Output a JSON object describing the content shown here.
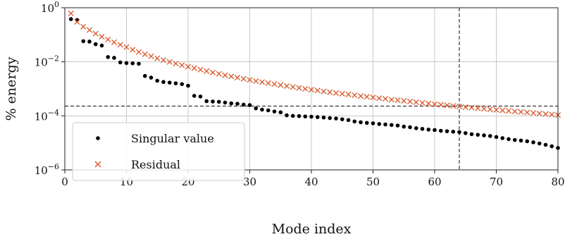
{
  "chart_data": {
    "type": "scatter",
    "xlabel": "Mode index",
    "ylabel": "% energy",
    "xlim": [
      0,
      80
    ],
    "ylim_log10": [
      -6,
      0
    ],
    "yscale": "log",
    "grid": true,
    "legend_position": "bottom-left",
    "x_ticks": [
      0,
      10,
      20,
      30,
      40,
      50,
      60,
      70,
      80
    ],
    "y_tick_exponents": [
      0,
      -2,
      -4,
      -6
    ],
    "y_tick_base": "10",
    "reference_lines": {
      "vertical_x": 64,
      "horizontal_y": 0.00023
    },
    "series": [
      {
        "name": "Singular value",
        "marker": "dot",
        "color": "#000000",
        "x": [
          1,
          2,
          3,
          4,
          5,
          6,
          7,
          8,
          9,
          10,
          11,
          12,
          13,
          14,
          15,
          16,
          17,
          18,
          19,
          20,
          21,
          22,
          23,
          24,
          25,
          26,
          27,
          28,
          29,
          30,
          31,
          32,
          33,
          34,
          35,
          36,
          37,
          38,
          39,
          40,
          41,
          42,
          43,
          44,
          45,
          46,
          47,
          48,
          49,
          50,
          51,
          52,
          53,
          54,
          55,
          56,
          57,
          58,
          59,
          60,
          61,
          62,
          63,
          64,
          65,
          66,
          67,
          68,
          69,
          70,
          71,
          72,
          73,
          74,
          75,
          76,
          77,
          78,
          79,
          80
        ],
        "y": [
          0.38,
          0.35,
          0.058,
          0.056,
          0.045,
          0.04,
          0.015,
          0.014,
          0.0095,
          0.009,
          0.0088,
          0.0085,
          0.003,
          0.0026,
          0.002,
          0.0018,
          0.0017,
          0.0016,
          0.0015,
          0.0013,
          0.00055,
          0.00052,
          0.00035,
          0.00034,
          0.00033,
          0.00031,
          0.00029,
          0.00028,
          0.00026,
          0.00025,
          0.00019,
          0.00017,
          0.00016,
          0.000145,
          0.000135,
          0.000105,
          0.0001,
          9.8e-05,
          9.5e-05,
          9.3e-05,
          9e-05,
          8.7e-05,
          8.3e-05,
          8e-05,
          7.5e-05,
          7e-05,
          6.2e-05,
          5.8e-05,
          5.5e-05,
          5.3e-05,
          5e-05,
          4.8e-05,
          4.6e-05,
          4.4e-05,
          4e-05,
          3.8e-05,
          3.5e-05,
          3.3e-05,
          3.1e-05,
          3e-05,
          2.8e-05,
          2.7e-05,
          2.6e-05,
          2.5e-05,
          2.3e-05,
          2.1e-05,
          2e-05,
          1.9e-05,
          1.8e-05,
          1.65e-05,
          1.5e-05,
          1.38e-05,
          1.28e-05,
          1.22e-05,
          1.15e-05,
          1.05e-05,
          9.5e-06,
          8.5e-06,
          7.5e-06,
          6.5e-06
        ]
      },
      {
        "name": "Residual",
        "marker": "x",
        "color": "#d9572b",
        "x": [
          1,
          2,
          3,
          4,
          5,
          6,
          7,
          8,
          9,
          10,
          11,
          12,
          13,
          14,
          15,
          16,
          17,
          18,
          19,
          20,
          21,
          22,
          23,
          24,
          25,
          26,
          27,
          28,
          29,
          30,
          31,
          32,
          33,
          34,
          35,
          36,
          37,
          38,
          39,
          40,
          41,
          42,
          43,
          44,
          45,
          46,
          47,
          48,
          49,
          50,
          51,
          52,
          53,
          54,
          55,
          56,
          57,
          58,
          59,
          60,
          61,
          62,
          63,
          64,
          65,
          66,
          67,
          68,
          69,
          70,
          71,
          72,
          73,
          74,
          75,
          76,
          77,
          78,
          79,
          80
        ],
        "y": [
          0.62,
          0.3,
          0.2,
          0.15,
          0.11,
          0.085,
          0.067,
          0.053,
          0.043,
          0.035,
          0.028,
          0.023,
          0.019,
          0.016,
          0.0135,
          0.0115,
          0.0099,
          0.0086,
          0.0075,
          0.0066,
          0.0058,
          0.0051,
          0.0045,
          0.004,
          0.0036,
          0.0032,
          0.0029,
          0.0026,
          0.00235,
          0.00215,
          0.00195,
          0.00178,
          0.00163,
          0.0015,
          0.00138,
          0.00127,
          0.00117,
          0.00108,
          0.001,
          0.00093,
          0.00087,
          0.00081,
          0.00075,
          0.0007,
          0.00066,
          0.00062,
          0.00058,
          0.00054,
          0.00051,
          0.00048,
          0.00045,
          0.00043,
          0.0004,
          0.00038,
          0.00036,
          0.00034,
          0.00032,
          0.0003,
          0.000285,
          0.00027,
          0.000257,
          0.000245,
          0.000233,
          0.000222,
          0.000211,
          0.000201,
          0.000192,
          0.000183,
          0.000175,
          0.000167,
          0.00016,
          0.000153,
          0.000146,
          0.00014,
          0.000134,
          0.000128,
          0.000122,
          0.000117,
          0.000112,
          0.000107
        ]
      }
    ]
  }
}
